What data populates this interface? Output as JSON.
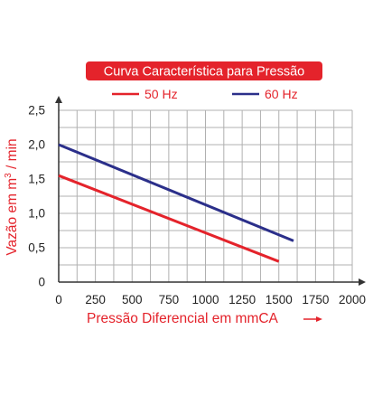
{
  "chart_data": {
    "type": "line",
    "title": "Curva Característica para Pressão",
    "xlabel": "Pressão Diferencial em mmCA",
    "ylabel_prefix": "Vazão em m",
    "ylabel_sup": "3",
    "ylabel_suffix": " / min",
    "xlim": [
      0,
      2000
    ],
    "ylim": [
      0,
      2.5
    ],
    "x_ticks": [
      0,
      250,
      500,
      750,
      1000,
      1250,
      1500,
      1750,
      2000
    ],
    "x_tick_labels": [
      "0",
      "250",
      "500",
      "750",
      "1000",
      "1250",
      "1500",
      "1750",
      "2000"
    ],
    "y_ticks": [
      0,
      0.5,
      1.0,
      1.5,
      2.0,
      2.5
    ],
    "y_tick_labels": [
      "0",
      "0,5",
      "1,0",
      "1,5",
      "2,0",
      "2,5"
    ],
    "grid": true,
    "legend_position": "top-center",
    "series": [
      {
        "name": "50 Hz",
        "color": "#e4232b",
        "x": [
          0,
          1500
        ],
        "y": [
          1.55,
          0.3
        ]
      },
      {
        "name": "60 Hz",
        "color": "#2b2f8a",
        "x": [
          0,
          1600
        ],
        "y": [
          2.0,
          0.6
        ]
      }
    ]
  },
  "colors": {
    "title_background": "#e4232b",
    "grid": "#b0b0b0",
    "axis": "#333333"
  }
}
